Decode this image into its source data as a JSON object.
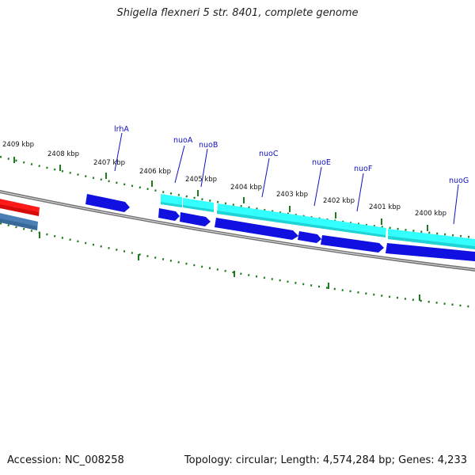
{
  "title": "Shigella flexneri 5 str. 8401, complete genome",
  "footer": {
    "accession": "Accession: NC_008258",
    "summary": "Topology: circular; Length: 4,574,284 bp; Genes: 4,233"
  },
  "colors": {
    "backbone": "#8a8a8a",
    "tick": "#1d7a1d",
    "cds": "#1010e0",
    "gene": "#33ffff",
    "label": "#1010c0",
    "rrna": "#ff1a1a",
    "trna": "#4a7fb5"
  },
  "scale_labels": [
    "2409 kbp",
    "2408 kbp",
    "2407 kbp",
    "2406 kbp",
    "2405 kbp",
    "2404 kbp",
    "2403 kbp",
    "2402 kbp",
    "2401 kbp",
    "2400 kbp"
  ],
  "gene_labels": [
    "lrhA",
    "nuoA",
    "nuoB",
    "nuoC",
    "nuoE",
    "nuoF",
    "nuoG"
  ]
}
